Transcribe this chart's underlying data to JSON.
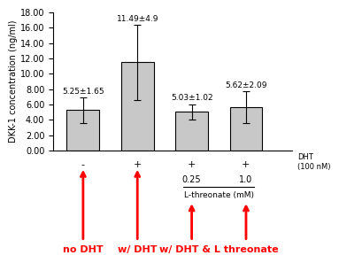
{
  "values": [
    5.25,
    11.49,
    5.03,
    5.62
  ],
  "errors": [
    1.65,
    4.9,
    1.02,
    2.09
  ],
  "labels": [
    "5.25±1.65",
    "11.49±4.9",
    "5.03±1.02",
    "5.62±2.09"
  ],
  "bar_color": "#c8c8c8",
  "bar_edgecolor": "#000000",
  "ylabel": "DKK-1 concentration (ng/ml)",
  "ylim": [
    0,
    18.0
  ],
  "yticks": [
    0.0,
    2.0,
    4.0,
    6.0,
    8.0,
    10.0,
    12.0,
    14.0,
    16.0,
    18.0
  ],
  "dht_labels": [
    "-",
    "+",
    "+",
    "+"
  ],
  "dht_row_label": "DHT\n(100 nM)",
  "lthreonate_vals": [
    "0.25",
    "1.0"
  ],
  "lthreonate_row_label": "L-threonate (mM)",
  "arrow_color": "#ff0000",
  "bar_positions": [
    1,
    2,
    3,
    4
  ],
  "bar_width": 0.6
}
